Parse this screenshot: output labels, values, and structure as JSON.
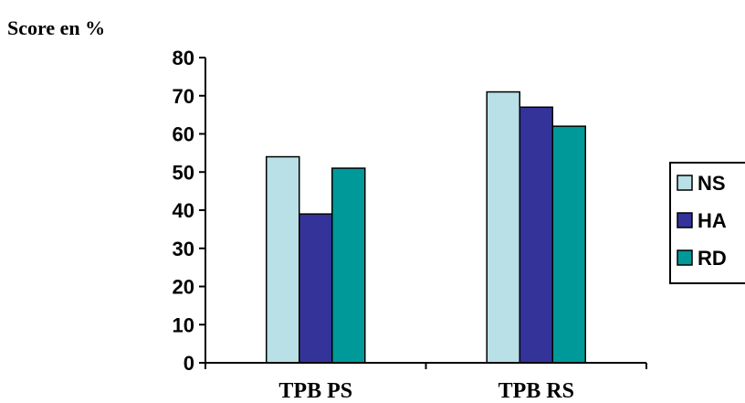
{
  "chart_data": {
    "type": "bar",
    "title": "",
    "ylabel": "Score en %",
    "xlabel": "",
    "ylim": [
      0,
      80
    ],
    "yticks": [
      0,
      10,
      20,
      30,
      40,
      50,
      60,
      70,
      80
    ],
    "categories": [
      "TPB PS",
      "TPB RS"
    ],
    "series": [
      {
        "name": "NS",
        "values": [
          54,
          71
        ],
        "color": "#b8e0e6"
      },
      {
        "name": "HA",
        "values": [
          39,
          67
        ],
        "color": "#333399"
      },
      {
        "name": "RD",
        "values": [
          51,
          62
        ],
        "color": "#009999"
      }
    ],
    "grid": false,
    "legend_position": "right"
  }
}
